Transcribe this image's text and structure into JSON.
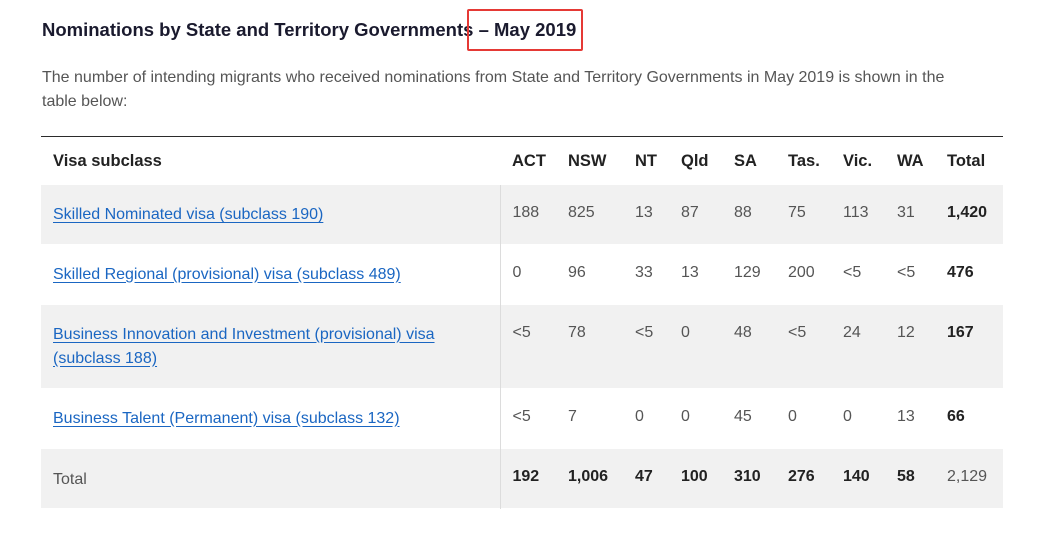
{
  "heading": {
    "title": "Nominations by State and Territory Governments",
    "separator": "–",
    "date": "May 2019"
  },
  "intro": "The number of intending migrants who received nominations from State and Territory Governments in May 2019 is shown in the table below:",
  "colors": {
    "link": "#1a66c2",
    "highlight_border": "#e53935",
    "row_shade": "#f1f1f1"
  },
  "table": {
    "headers": [
      "Visa subclass",
      "ACT",
      "NSW",
      "NT",
      "Qld",
      "SA",
      "Tas.",
      "Vic.",
      "WA",
      "Total"
    ],
    "rows": [
      {
        "label": "Skilled Nominated visa (subclass 190)",
        "values": [
          "188",
          "825",
          "13",
          "87",
          "88",
          "75",
          "113",
          "31"
        ],
        "total": "1,420"
      },
      {
        "label": "Skilled Regional (provisional) visa (subclass 489)",
        "values": [
          "0",
          "96",
          "33",
          "13",
          "129",
          "200",
          "<5",
          "<5"
        ],
        "total": "476"
      },
      {
        "label": "Business Innovation and Investment (provisional) visa (subclass 188)",
        "values": [
          "<5",
          "78",
          "<5",
          "0",
          "48",
          "<5",
          "24",
          "12"
        ],
        "total": "167"
      },
      {
        "label": "Business Talent (Permanent) visa (subclass 132)",
        "values": [
          "<5",
          "7",
          "0",
          "0",
          "45",
          "0",
          "0",
          "13"
        ],
        "total": "66"
      }
    ],
    "total_row": {
      "label": "Total",
      "values": [
        "192",
        "1,006",
        "47",
        "100",
        "310",
        "276",
        "140",
        "58"
      ],
      "total": "2,129"
    }
  }
}
